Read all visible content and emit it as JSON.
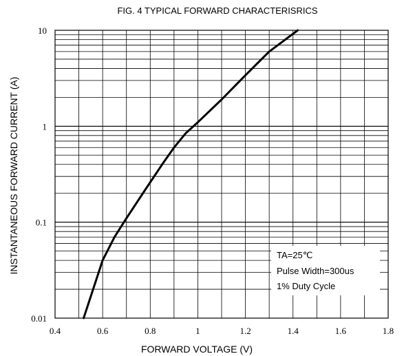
{
  "chart_data": {
    "type": "line",
    "title": "FIG. 4 TYPICAL FORWARD CHARACTERISRICS",
    "xlabel": "FORWARD VOLTAGE (V)",
    "ylabel": "INSTANTANEOUS FORWARD CURRENT (A)",
    "xlim": [
      0.4,
      1.8
    ],
    "ylim": [
      0.01,
      10
    ],
    "yscale": "log",
    "grid": true,
    "x_ticks": [
      0.4,
      0.6,
      0.8,
      1.0,
      1.2,
      1.4,
      1.6,
      1.8
    ],
    "x_tick_labels": [
      "0.4",
      "0.6",
      "0.8",
      "1",
      "1.2",
      "1.4",
      "1.6",
      "1.8"
    ],
    "y_ticks": [
      0.01,
      0.1,
      1,
      10
    ],
    "y_tick_labels": [
      "0.01",
      "0.1",
      "1",
      "10"
    ],
    "series": [
      {
        "x": [
          0.52,
          0.56,
          0.6,
          0.65,
          0.7,
          0.78,
          0.85,
          0.9,
          0.95,
          1.0,
          1.1,
          1.2,
          1.3,
          1.42
        ],
        "y": [
          0.01,
          0.02,
          0.04,
          0.07,
          0.11,
          0.22,
          0.4,
          0.6,
          0.85,
          1.1,
          1.9,
          3.4,
          6.0,
          10
        ]
      }
    ],
    "annotations": [
      "TA=25℃",
      "Pulse Width=300us",
      "1% Duty Cycle"
    ],
    "colors": {
      "line": "#000000",
      "grid": "#000000"
    }
  }
}
